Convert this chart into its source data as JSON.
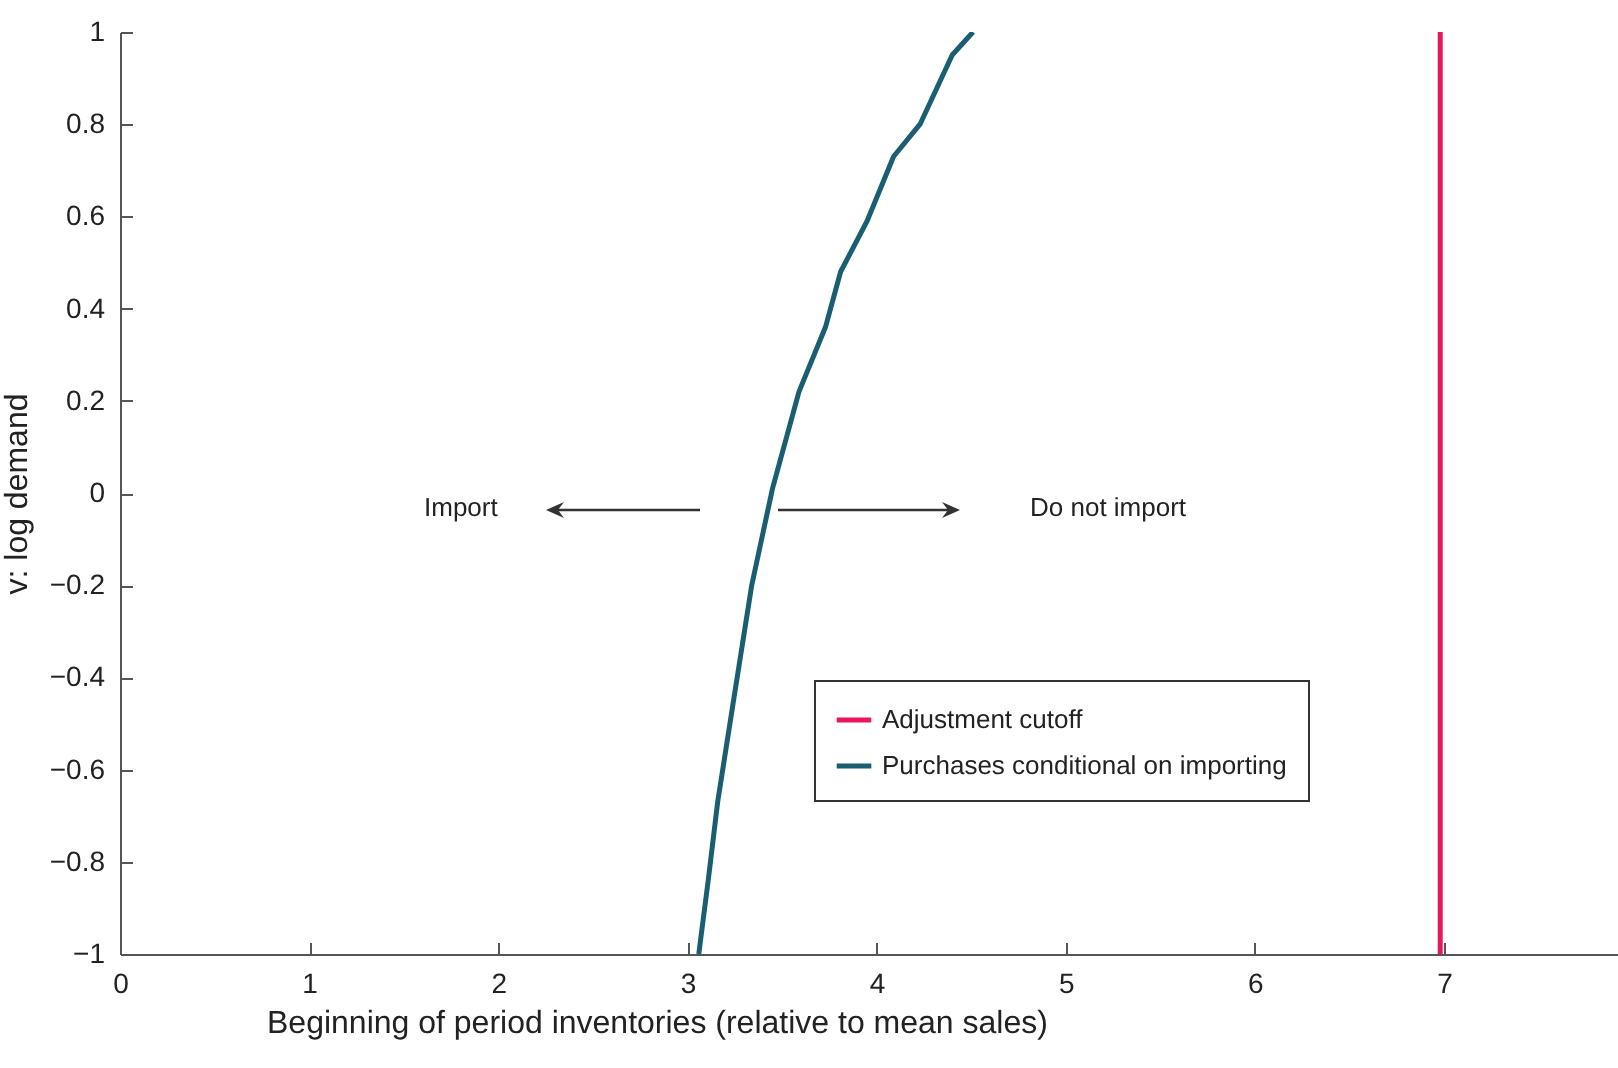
{
  "chart_data": {
    "type": "line",
    "xlabel": "Beginning of period inventories (relative to mean sales)",
    "ylabel": "v: log demand",
    "xlim": [
      0,
      7.92
    ],
    "xticks": [
      0,
      1,
      2,
      3,
      4,
      5,
      6,
      7
    ],
    "ylim": [
      -1,
      1
    ],
    "yticks": [
      {
        "value": -1,
        "label": "−1"
      },
      {
        "value": -0.8,
        "label": "−0.8"
      },
      {
        "value": -0.6,
        "label": "−0.6"
      },
      {
        "value": -0.4,
        "label": "−0.4"
      },
      {
        "value": -0.2,
        "label": "−0.2"
      },
      0,
      0.2,
      0.4,
      0.6,
      0.8,
      1
    ],
    "series": [
      {
        "name": "Adjustment cutoff",
        "color": "#e8175d",
        "x": [
          6.98,
          6.98
        ],
        "values": [
          -1,
          1
        ]
      },
      {
        "name": "Purchases conditional on importing",
        "color": "#1a5e72",
        "x": [
          3.06,
          3.11,
          3.16,
          3.24,
          3.34,
          3.45,
          3.59,
          3.73,
          3.81,
          3.95,
          4.09,
          4.23,
          4.4,
          4.51
        ],
        "values": [
          -1,
          -0.84,
          -0.67,
          -0.46,
          -0.2,
          0.01,
          0.22,
          0.36,
          0.48,
          0.59,
          0.73,
          0.8,
          0.95,
          1
        ]
      }
    ],
    "annotations": [
      "Import",
      "Do not import"
    ],
    "legend": "bottom right",
    "grid": false,
    "line_style": "solid",
    "marker": "none"
  }
}
